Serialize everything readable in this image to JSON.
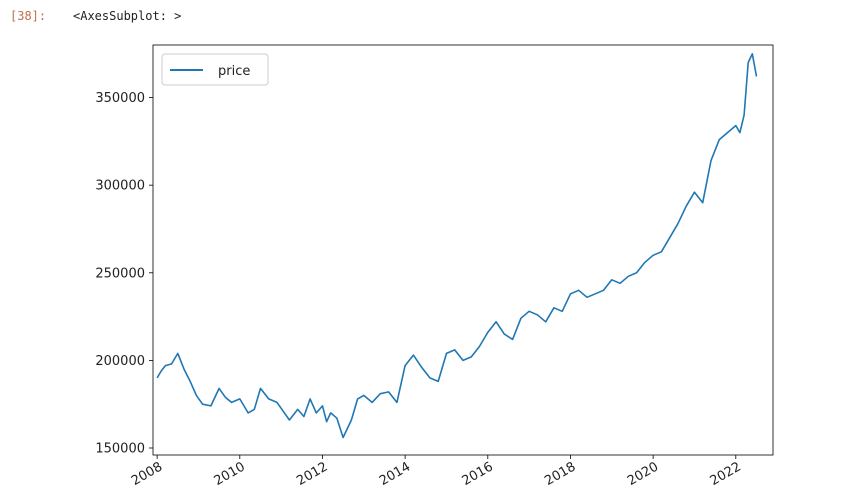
{
  "cell": {
    "prompt": "[38]:",
    "output_repr": "<AxesSubplot: >"
  },
  "colors": {
    "series": "#1f77b4",
    "prompt": "#c0704a"
  },
  "chart_data": {
    "type": "line",
    "title": "",
    "xlabel": "",
    "ylabel": "",
    "xlim": [
      2007.9,
      2022.9
    ],
    "ylim": [
      146000,
      380000
    ],
    "grid": false,
    "legend": "top-left",
    "x_ticks": [
      2008,
      2010,
      2012,
      2014,
      2016,
      2018,
      2020,
      2022
    ],
    "x_tick_labels": [
      "2008",
      "2010",
      "2012",
      "2014",
      "2016",
      "2018",
      "2020",
      "2022"
    ],
    "y_ticks": [
      150000,
      200000,
      250000,
      300000,
      350000
    ],
    "y_tick_labels": [
      "150000",
      "200000",
      "250000",
      "300000",
      "350000"
    ],
    "series": [
      {
        "name": "price",
        "x": [
          2008.0,
          2008.1,
          2008.2,
          2008.35,
          2008.5,
          2008.65,
          2008.8,
          2008.95,
          2009.1,
          2009.3,
          2009.5,
          2009.65,
          2009.8,
          2010.0,
          2010.2,
          2010.35,
          2010.5,
          2010.7,
          2010.9,
          2011.05,
          2011.2,
          2011.4,
          2011.55,
          2011.7,
          2011.85,
          2012.0,
          2012.1,
          2012.2,
          2012.35,
          2012.5,
          2012.7,
          2012.85,
          2013.0,
          2013.2,
          2013.4,
          2013.6,
          2013.8,
          2014.0,
          2014.2,
          2014.4,
          2014.6,
          2014.8,
          2015.0,
          2015.2,
          2015.4,
          2015.6,
          2015.8,
          2016.0,
          2016.2,
          2016.4,
          2016.6,
          2016.8,
          2017.0,
          2017.2,
          2017.4,
          2017.6,
          2017.8,
          2018.0,
          2018.2,
          2018.4,
          2018.6,
          2018.8,
          2019.0,
          2019.2,
          2019.4,
          2019.6,
          2019.8,
          2020.0,
          2020.2,
          2020.4,
          2020.6,
          2020.8,
          2021.0,
          2021.2,
          2021.4,
          2021.6,
          2021.8,
          2022.0,
          2022.1,
          2022.2,
          2022.3,
          2022.4,
          2022.5
        ],
        "values": [
          190000,
          194000,
          197000,
          198000,
          204000,
          195000,
          188000,
          180000,
          175000,
          174000,
          184000,
          179000,
          176000,
          178000,
          170000,
          172000,
          184000,
          178000,
          176000,
          171000,
          166000,
          172000,
          168000,
          178000,
          170000,
          174000,
          165000,
          170000,
          167000,
          156000,
          166000,
          178000,
          180000,
          176000,
          181000,
          182000,
          176000,
          197000,
          203000,
          196000,
          190000,
          188000,
          204000,
          206000,
          200000,
          202000,
          208000,
          216000,
          222000,
          215000,
          212000,
          224000,
          228000,
          226000,
          222000,
          230000,
          228000,
          238000,
          240000,
          236000,
          238000,
          240000,
          246000,
          244000,
          248000,
          250000,
          256000,
          260000,
          262000,
          270000,
          278000,
          288000,
          296000,
          290000,
          314000,
          326000,
          330000,
          334000,
          330000,
          340000,
          370000,
          375000,
          362000
        ]
      }
    ]
  }
}
